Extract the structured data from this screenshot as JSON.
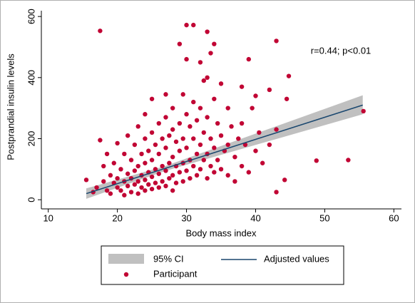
{
  "chart_data": {
    "type": "scatter",
    "x_label": "Body mass index",
    "y_label": "Postprandial insulin levels",
    "annotation": "r=0.44; p<0.01",
    "xlim": [
      9,
      61.1
    ],
    "ylim": [
      -30,
      619
    ],
    "xticks": [
      10,
      20,
      30,
      40,
      50,
      60
    ],
    "yticks": [
      0,
      200,
      400,
      600
    ],
    "ci": {
      "name": "95% CI",
      "color": "#c0c0c0",
      "x": [
        15.5,
        27,
        55.5
      ],
      "lower": [
        3,
        95,
        280
      ],
      "upper": [
        37,
        111,
        342
      ]
    },
    "fit": {
      "name": "Adjusted values",
      "color": "#1a476f",
      "x": [
        15.5,
        55.5
      ],
      "values": [
        20,
        310
      ]
    },
    "series": [
      {
        "name": "Participant",
        "color": "#c10534",
        "x": [
          15.5,
          16.5,
          17,
          17.5,
          17.5,
          18,
          18,
          18.5,
          18.5,
          19,
          19,
          19.5,
          19.5,
          20,
          20,
          20,
          20.5,
          20.5,
          21,
          21,
          21,
          21.5,
          21.5,
          21.5,
          22,
          22,
          22,
          22.5,
          22.5,
          22.5,
          23,
          23,
          23,
          23,
          23.5,
          23.5,
          23.5,
          24,
          24,
          24,
          24,
          24,
          24.5,
          24.5,
          24.5,
          25,
          25,
          25,
          25,
          25,
          25.5,
          25.5,
          25.5,
          26,
          26,
          26,
          26,
          26.5,
          26.5,
          26.5,
          27,
          27,
          27,
          27,
          27,
          27.5,
          27.5,
          27.5,
          28,
          28,
          28,
          28,
          28,
          28.5,
          28.5,
          28.5,
          29,
          29,
          29,
          29,
          29.5,
          29.5,
          29.5,
          29.5,
          30,
          30,
          30,
          30,
          30,
          30.5,
          30.5,
          30.5,
          31,
          31,
          31,
          31,
          31.5,
          31.5,
          31.5,
          32,
          32,
          32,
          32,
          32.5,
          32.5,
          32.5,
          33,
          33,
          33,
          33,
          33,
          33.5,
          33.5,
          33.5,
          34,
          34,
          34,
          34,
          34.5,
          34.5,
          35,
          35,
          35,
          35.5,
          36,
          36,
          36,
          36.5,
          37,
          37,
          37.5,
          38,
          38,
          38,
          38.5,
          39,
          39,
          39.5,
          40,
          40,
          40.5,
          41,
          42,
          42,
          43,
          43,
          43,
          44.2,
          44.5,
          44.8,
          48.8,
          53.4,
          55.6
        ],
        "values": [
          65,
          25,
          40,
          553,
          195,
          110,
          60,
          30,
          150,
          80,
          20,
          120,
          55,
          185,
          70,
          40,
          100,
          30,
          150,
          60,
          15,
          210,
          85,
          45,
          130,
          70,
          25,
          180,
          95,
          50,
          240,
          110,
          60,
          20,
          150,
          80,
          40,
          280,
          200,
          120,
          65,
          30,
          160,
          90,
          50,
          330,
          220,
          130,
          75,
          35,
          180,
          100,
          55,
          250,
          150,
          85,
          40,
          200,
          110,
          60,
          345,
          270,
          170,
          95,
          45,
          210,
          120,
          70,
          300,
          230,
          140,
          80,
          30,
          190,
          110,
          55,
          250,
          160,
          90,
          510,
          345,
          200,
          120,
          60,
          572,
          460,
          280,
          170,
          95,
          240,
          130,
          70,
          572,
          320,
          200,
          110,
          260,
          150,
          80,
          450,
          300,
          180,
          100,
          390,
          220,
          130,
          400,
          550,
          270,
          150,
          70,
          480,
          200,
          110,
          510,
          330,
          170,
          90,
          250,
          130,
          380,
          210,
          100,
          160,
          300,
          180,
          80,
          240,
          140,
          60,
          200,
          370,
          250,
          110,
          180,
          460,
          90,
          300,
          340,
          160,
          220,
          120,
          360,
          180,
          520,
          25,
          230,
          65,
          330,
          405,
          128,
          130,
          290
        ]
      }
    ]
  }
}
